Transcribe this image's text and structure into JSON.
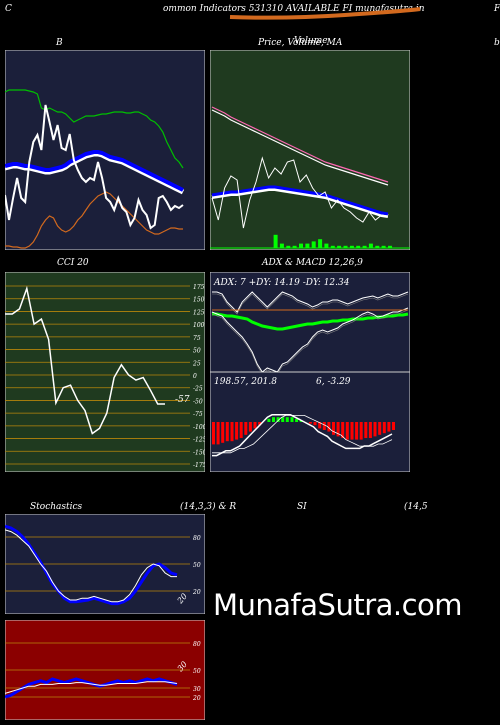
{
  "header": {
    "left_letter": "C",
    "title": "ommon Indicators 531310 AVAILABLE FI munafasutra.in",
    "right_letter": "F"
  },
  "panels": {
    "bollinger": {
      "title": "B",
      "right_letter": "b"
    },
    "price": {
      "title": "Price, Volume, MA",
      "overlay": "Volume"
    },
    "cci": {
      "title": "CCI 20",
      "value_label": "-57",
      "ticks": [
        175,
        150,
        125,
        100,
        75,
        50,
        25,
        0,
        -25,
        -50,
        -75,
        -100,
        -125,
        -150,
        -175
      ]
    },
    "adx": {
      "title": "ADX  & MACD 12,26,9",
      "adx_label": "ADX: 7 +DY: 14.19 -DY: 12.34",
      "macd_label_left": "198.57,  201.8",
      "macd_label_right": "6,  -3.29"
    },
    "stochastics": {
      "title_left": "Stochastics",
      "title_mid": "(14,3,3) & R",
      "title_rsi": "SI",
      "title_right": "(14,5",
      "ticks": [
        80,
        50,
        20
      ],
      "value_label": "20"
    },
    "rsi": {
      "ticks": [
        80,
        50,
        30,
        20
      ],
      "value_label": "30"
    }
  },
  "colors": {
    "bg": "#000000",
    "navy": "#1b1f3a",
    "green_bg": "#1f3a1f",
    "red_bg": "#8b0000",
    "orange": "#d2691e",
    "blue": "#0000ff",
    "lime": "#00ff00",
    "pink": "#ff69b4"
  },
  "watermark": "MunafaSutra.com",
  "chart_data": [
    {
      "type": "line",
      "name": "bollinger",
      "series": [
        {
          "name": "upper",
          "color": "#00c000",
          "values": [
            42,
            40,
            40,
            40,
            40,
            40,
            41,
            42,
            44,
            58,
            60,
            58,
            60,
            62,
            62,
            64,
            68,
            72,
            70,
            68,
            66,
            66,
            66,
            65,
            64,
            64,
            63,
            62,
            62,
            62,
            63,
            63,
            62,
            62,
            64,
            66,
            70,
            72,
            76,
            82,
            92,
            100,
            108,
            112,
            118
          ]
        },
        {
          "name": "middle",
          "color": "#0000ff",
          "values": [
            116,
            115,
            114,
            114,
            115,
            116,
            116,
            117,
            118,
            119,
            120,
            120,
            119,
            118,
            117,
            115,
            112,
            110,
            108,
            106,
            104,
            103,
            102,
            102,
            103,
            105,
            107,
            108,
            109,
            110,
            112,
            114,
            116,
            118,
            120,
            122,
            124,
            126,
            128,
            130,
            132,
            134,
            136,
            138,
            140
          ]
        },
        {
          "name": "lower",
          "color": "#d2691e",
          "values": [
            196,
            196,
            197,
            197,
            198,
            198,
            196,
            192,
            185,
            176,
            170,
            166,
            168,
            176,
            180,
            182,
            180,
            176,
            170,
            166,
            160,
            154,
            150,
            146,
            144,
            142,
            144,
            148,
            152,
            156,
            160,
            164,
            168,
            172,
            176,
            180,
            182,
            184,
            184,
            182,
            180,
            178,
            178,
            179,
            179
          ]
        },
        {
          "name": "price",
          "color": "#ffffff",
          "values": [
            145,
            170,
            148,
            128,
            148,
            152,
            112,
            92,
            85,
            100,
            55,
            72,
            90,
            75,
            98,
            100,
            84,
            110,
            120,
            128,
            132,
            128,
            130,
            112,
            128,
            148,
            152,
            160,
            148,
            158,
            162,
            175,
            168,
            150,
            160,
            165,
            178,
            175,
            148,
            146,
            152,
            160,
            156,
            158,
            155
          ]
        }
      ]
    },
    {
      "type": "line",
      "name": "price_volume_ma",
      "series": [
        {
          "name": "ma_pink",
          "color": "#ff69b4",
          "values": [
            57,
            60,
            63,
            67,
            70,
            73,
            76,
            79,
            82,
            85,
            88,
            91,
            94,
            97,
            100,
            103,
            106,
            109,
            112,
            114,
            116,
            118,
            120,
            122,
            124,
            126,
            128,
            130,
            132
          ]
        },
        {
          "name": "ma_white",
          "color": "#ffffff",
          "values": [
            60,
            63,
            66,
            70,
            73,
            76,
            79,
            82,
            85,
            88,
            91,
            94,
            97,
            100,
            103,
            106,
            109,
            112,
            115,
            117,
            119,
            121,
            123,
            125,
            127,
            129,
            131,
            133,
            135
          ]
        },
        {
          "name": "ma_blue",
          "color": "#0000ff",
          "values": [
            145,
            144,
            143,
            142,
            142,
            141,
            140,
            139,
            138,
            137,
            137,
            138,
            139,
            140,
            141,
            142,
            143,
            144,
            145,
            147,
            149,
            151,
            153,
            155,
            157,
            159,
            161,
            163,
            164
          ]
        },
        {
          "name": "close",
          "color": "#ffffff",
          "values": [
            148,
            170,
            138,
            126,
            130,
            178,
            150,
            132,
            108,
            128,
            118,
            124,
            112,
            110,
            132,
            125,
            138,
            146,
            142,
            158,
            150,
            158,
            162,
            168,
            172,
            162,
            170,
            165,
            166
          ]
        },
        {
          "name": "volume",
          "color": "#00ff00",
          "values": [
            0,
            0,
            0,
            0,
            0,
            0,
            0,
            0,
            0,
            0,
            6,
            2,
            1,
            1,
            2,
            2,
            3,
            4,
            2,
            1,
            1,
            1,
            1,
            1,
            1,
            2,
            1,
            1,
            1
          ]
        }
      ]
    },
    {
      "type": "line",
      "name": "cci",
      "ylim": [
        -175,
        175
      ],
      "values": [
        120,
        120,
        130,
        170,
        100,
        110,
        70,
        -55,
        -25,
        -20,
        -50,
        -70,
        -115,
        -105,
        -75,
        -5,
        20,
        0,
        -10,
        -5,
        -30,
        -57,
        -57
      ]
    },
    {
      "type": "line",
      "name": "adx",
      "series": [
        {
          "name": "adx",
          "color": "#00ff00",
          "values": [
            42,
            42,
            43,
            44,
            44,
            45,
            46,
            47,
            50,
            52,
            54,
            55,
            56,
            57,
            57,
            56,
            55,
            54,
            53,
            52,
            52,
            51,
            50,
            50,
            49,
            49,
            48,
            48,
            47,
            47,
            47,
            46,
            46,
            45,
            45,
            44,
            44,
            43,
            43,
            42
          ]
        },
        {
          "name": "plus_dy",
          "color": "#ffffff",
          "values": [
            20,
            20,
            22,
            30,
            35,
            40,
            30,
            25,
            20,
            25,
            30,
            35,
            30,
            25,
            20,
            22,
            24,
            28,
            30,
            32,
            35,
            33,
            30,
            30,
            28,
            28,
            30,
            32,
            30,
            28,
            26,
            25,
            24,
            26,
            24,
            22,
            24,
            24,
            22,
            20
          ]
        },
        {
          "name": "minus_dy",
          "color": "#ffffff",
          "values": [
            40,
            42,
            44,
            50,
            55,
            60,
            65,
            72,
            80,
            92,
            100,
            96,
            98,
            100,
            92,
            90,
            85,
            80,
            75,
            72,
            65,
            60,
            58,
            60,
            58,
            56,
            52,
            50,
            48,
            45,
            42,
            40,
            42,
            45,
            44,
            42,
            40,
            40,
            38,
            36
          ]
        },
        {
          "name": "orange",
          "color": "#d2691e",
          "values": [
            38,
            38,
            38,
            38,
            38,
            38,
            38,
            38,
            38,
            38,
            38,
            38,
            38,
            38,
            38,
            38,
            38,
            38,
            38,
            38,
            38,
            38,
            38,
            38,
            38,
            38,
            38,
            38,
            38,
            38,
            38,
            38,
            38,
            38,
            38,
            38,
            38,
            38,
            38,
            38
          ]
        }
      ]
    },
    {
      "type": "bar",
      "name": "macd_histogram",
      "values": [
        -14,
        -14,
        -13,
        -12,
        -12,
        -11,
        -10,
        -8,
        -6,
        -4,
        -2,
        0,
        2,
        3,
        3,
        3,
        3,
        3,
        2,
        1,
        0,
        -1,
        -2,
        -4,
        -5,
        -6,
        -8,
        -9,
        -10,
        -11,
        -11,
        -11,
        -11,
        -10,
        -10,
        -9,
        -8,
        -7,
        -6,
        -5
      ]
    },
    {
      "type": "line",
      "name": "stochastics",
      "ylim": [
        0,
        100
      ],
      "series": [
        {
          "name": "k",
          "color": "#0000ff",
          "values": [
            92,
            90,
            86,
            80,
            72,
            62,
            52,
            40,
            28,
            20,
            12,
            8,
            8,
            9,
            10,
            12,
            10,
            8,
            6,
            6,
            8,
            12,
            20,
            30,
            40,
            48,
            50,
            46,
            40,
            38
          ]
        },
        {
          "name": "d",
          "color": "#ffffff",
          "values": [
            88,
            86,
            82,
            76,
            70,
            60,
            50,
            42,
            30,
            20,
            14,
            10,
            10,
            12,
            12,
            14,
            12,
            10,
            8,
            8,
            10,
            16,
            26,
            38,
            46,
            50,
            48,
            40,
            36,
            36
          ]
        }
      ]
    },
    {
      "type": "line",
      "name": "rsi",
      "ylim": [
        0,
        100
      ],
      "series": [
        {
          "name": "rsi",
          "color": "#0000ff",
          "values": [
            20,
            22,
            26,
            30,
            34,
            36,
            38,
            36,
            40,
            38,
            36,
            38,
            40,
            38,
            36,
            34,
            32,
            34,
            36,
            38,
            36,
            38,
            36,
            38,
            40,
            38,
            40,
            38,
            36,
            34
          ]
        },
        {
          "name": "rsi_ma",
          "color": "#ffffff",
          "values": [
            24,
            26,
            28,
            30,
            32,
            32,
            34,
            34,
            34,
            35,
            35,
            35,
            36,
            36,
            35,
            34,
            33,
            33,
            34,
            35,
            35,
            35,
            35,
            36,
            37,
            37,
            37,
            37,
            36,
            35
          ]
        }
      ]
    }
  ]
}
